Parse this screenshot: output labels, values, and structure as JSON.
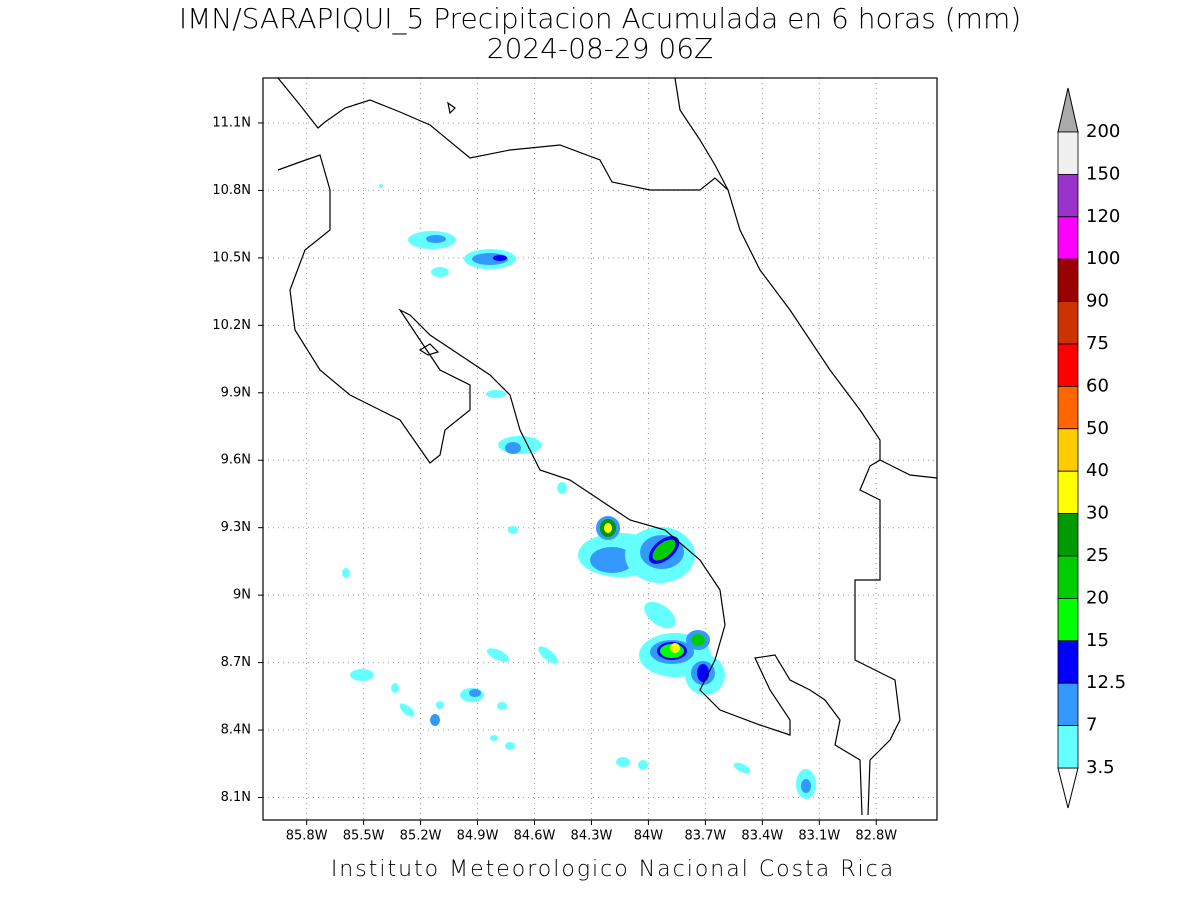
{
  "map": {
    "title": "IMN/SARAPIQUI_5 Precipitacion Acumulada en 6 horas (mm)",
    "subtitle": "2024-08-29 06Z",
    "footer": "Instituto Meteorologico Nacional Costa Rica",
    "xlim": [
      -86.03,
      -82.48
    ],
    "ylim": [
      8.0,
      11.3
    ],
    "grid": true,
    "xticks": [
      {
        "value": -85.8,
        "label": "85.8W"
      },
      {
        "value": -85.5,
        "label": "85.5W"
      },
      {
        "value": -85.2,
        "label": "85.2W"
      },
      {
        "value": -84.9,
        "label": "84.9W"
      },
      {
        "value": -84.6,
        "label": "84.6W"
      },
      {
        "value": -84.3,
        "label": "84.3W"
      },
      {
        "value": -84.0,
        "label": "84W"
      },
      {
        "value": -83.7,
        "label": "83.7W"
      },
      {
        "value": -83.4,
        "label": "83.4W"
      },
      {
        "value": -83.1,
        "label": "83.1W"
      },
      {
        "value": -82.8,
        "label": "82.8W"
      }
    ],
    "yticks": [
      {
        "value": 11.1,
        "label": "11.1N"
      },
      {
        "value": 10.8,
        "label": "10.8N"
      },
      {
        "value": 10.5,
        "label": "10.5N"
      },
      {
        "value": 10.2,
        "label": "10.2N"
      },
      {
        "value": 9.9,
        "label": "9.9N"
      },
      {
        "value": 9.6,
        "label": "9.6N"
      },
      {
        "value": 9.3,
        "label": "9.3N"
      },
      {
        "value": 9.0,
        "label": "9N"
      },
      {
        "value": 8.7,
        "label": "8.7N"
      },
      {
        "value": 8.4,
        "label": "8.4N"
      },
      {
        "value": 8.1,
        "label": "8.1N"
      }
    ],
    "colorbar": {
      "levels": [
        200,
        150,
        120,
        100,
        90,
        75,
        60,
        50,
        40,
        30,
        25,
        20,
        15,
        12.5,
        7,
        3.5
      ],
      "colors": [
        "#f0f0f0",
        "#9933cc",
        "#ff00ff",
        "#990000",
        "#cc3300",
        "#ff0000",
        "#ff6600",
        "#ffcc00",
        "#ffff00",
        "#009900",
        "#00cc00",
        "#00ff00",
        "#0000ff",
        "#3399ff",
        "#66ffff"
      ],
      "over_color": "#aaaaaa",
      "under_color": "#ffffff"
    }
  }
}
